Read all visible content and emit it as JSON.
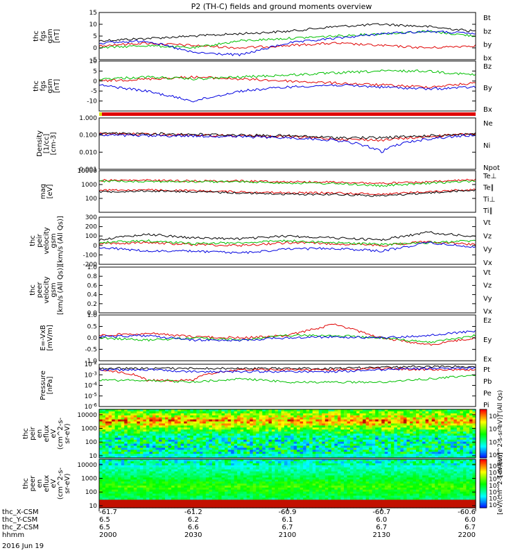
{
  "title": "P2 (TH-C) fields and ground moments overview",
  "date_label": "2016 Jun 19",
  "time_range": [
    "2000",
    "2200"
  ],
  "panels": [
    {
      "id": "fgs_gsm",
      "ylabel": [
        "thc",
        "fgs",
        "gsm",
        "[nT]"
      ],
      "ylim": [
        -5,
        15
      ],
      "yticks": [
        "15",
        "10",
        "5",
        "0",
        "-5"
      ],
      "yticks_values": [
        15,
        10,
        5,
        0,
        -5
      ],
      "legend": [
        {
          "label": "Bt",
          "color": "#000000"
        },
        {
          "label": "bz",
          "color": "#e00000"
        },
        {
          "label": "by",
          "color": "#00c000"
        },
        {
          "label": "bx",
          "color": "#0000e0"
        }
      ]
    },
    {
      "id": "fgs_gse",
      "ylabel": [
        "thc",
        "fgs",
        "gsm",
        "[nT]"
      ],
      "ylim": [
        -15,
        10
      ],
      "yticks": [
        "10",
        "5",
        "0",
        "-5",
        "-10"
      ],
      "yticks_values": [
        10,
        5,
        0,
        -5,
        -10
      ],
      "legend": [
        {
          "label": "Bz",
          "color": "#e00000"
        },
        {
          "label": "By",
          "color": "#00c000"
        },
        {
          "label": "Bx",
          "color": "#0000e0"
        }
      ]
    },
    {
      "id": "density",
      "ylabel": [
        "Density",
        "[1/cc]",
        "[cm-3]"
      ],
      "log": true,
      "ylim": [
        0.001,
        1.0
      ],
      "yticks": [
        "1.000",
        "0.100",
        "0.010",
        "0.001"
      ],
      "yticks_values": [
        1.0,
        0.1,
        0.01,
        0.001
      ],
      "legend": [
        {
          "label": "Ne",
          "color": "#e00000"
        },
        {
          "label": "Ni",
          "color": "#000000"
        },
        {
          "label": "Npot",
          "color": "#0000e0"
        }
      ]
    },
    {
      "id": "temperature",
      "ylabel": [
        "mag",
        "[eV]"
      ],
      "log": true,
      "ylim": [
        10,
        10000
      ],
      "yticks": [
        "10000",
        "1000",
        "100"
      ],
      "yticks_values": [
        10000,
        1000,
        100
      ],
      "legend": [
        {
          "label": "Te⊥",
          "color": "#e00000"
        },
        {
          "label": "Te∥",
          "color": "#000000"
        },
        {
          "label": "Ti⊥",
          "color": "#e00000"
        },
        {
          "label": "Ti∥",
          "color": "#00c000"
        }
      ]
    },
    {
      "id": "peir_velocity",
      "ylabel": [
        "thc",
        "peir",
        "velocity",
        "gsm",
        "[km/s (All Qs)]"
      ],
      "ylim": [
        -200,
        300
      ],
      "yticks": [
        "300",
        "200",
        "100",
        "0",
        "-100",
        "-200"
      ],
      "yticks_values": [
        300,
        200,
        100,
        0,
        -100,
        -200
      ],
      "legend": [
        {
          "label": "Vt",
          "color": "#000000"
        },
        {
          "label": "Vz",
          "color": "#e00000"
        },
        {
          "label": "Vy",
          "color": "#00c000"
        },
        {
          "label": "Vx",
          "color": "#0000e0"
        }
      ]
    },
    {
      "id": "peer_velocity",
      "ylabel": [
        "thc",
        "peer",
        "velocity",
        "gsm",
        "[km/s (All Qs)]"
      ],
      "ylim": [
        0.0,
        1.0
      ],
      "yticks": [
        "1.0",
        "0.8",
        "0.6",
        "0.4",
        "0.2",
        "0.0"
      ],
      "yticks_values": [
        1.0,
        0.8,
        0.6,
        0.4,
        0.2,
        0.0
      ],
      "legend": [
        {
          "label": "Vt",
          "color": "#000000"
        },
        {
          "label": "Vz",
          "color": "#e00000"
        },
        {
          "label": "Vy",
          "color": "#00c000"
        },
        {
          "label": "Vx",
          "color": "#0000e0"
        }
      ]
    },
    {
      "id": "efield",
      "ylabel": [
        "E=-VxB",
        "[mV/m]"
      ],
      "ylim": [
        -1.0,
        1.0
      ],
      "yticks": [
        "1.0",
        "0.5",
        "0.0",
        "-0.5",
        "-1.0"
      ],
      "yticks_values": [
        1.0,
        0.5,
        0.0,
        -0.5,
        -1.0
      ],
      "legend": [
        {
          "label": "Ez",
          "color": "#e00000"
        },
        {
          "label": "Ey",
          "color": "#00c000"
        },
        {
          "label": "Ex",
          "color": "#0000e0"
        }
      ]
    },
    {
      "id": "pressure",
      "ylabel": [
        "Pressure",
        "[nPa]"
      ],
      "log": true,
      "ylim": [
        1e-06,
        0.01
      ],
      "yticks": [
        "10-2",
        "10-3",
        "10-4",
        "10-5",
        "10-6"
      ],
      "yticks_values": [
        0.01,
        0.001,
        0.0001,
        1e-05,
        1e-06
      ],
      "legend": [
        {
          "label": "Pt",
          "color": "#000000"
        },
        {
          "label": "Pb",
          "color": "#e00000"
        },
        {
          "label": "Pe",
          "color": "#00c000"
        },
        {
          "label": "Pi",
          "color": "#0000e0"
        }
      ]
    },
    {
      "id": "peir_spectrogram",
      "ylabel": [
        "thc",
        "peir",
        "en",
        "eflux",
        "eV",
        "(cm^2-s-",
        "sr-eV)"
      ],
      "log": true,
      "ylim": [
        7,
        25000
      ],
      "yticks": [
        "10000",
        "1000",
        "100",
        "10"
      ],
      "yticks_values": [
        10000,
        1000,
        100,
        10
      ],
      "colorbar_ticks": [
        "10^5",
        "10^4",
        "10^3",
        "10^2"
      ],
      "colorbar_ticks_values": [
        100000,
        10000,
        1000,
        100
      ],
      "colorbar_label": "[eV/(cm^2-s-sr-eV)] (All Qs)"
    },
    {
      "id": "peer_spectrogram",
      "ylabel": [
        "thc",
        "peer",
        "en",
        "eflux",
        "eV",
        "(cm^2-s-",
        "sr-eV)"
      ],
      "log": true,
      "ylim": [
        7,
        25000
      ],
      "yticks": [
        "10000",
        "1000",
        "100",
        "10"
      ],
      "yticks_values": [
        10000,
        1000,
        100,
        10
      ],
      "colorbar_ticks": [
        "10^8",
        "10^7",
        "10^6",
        "10^5",
        "10^4",
        "10^3",
        "10^2"
      ],
      "colorbar_ticks_values": [
        100000000,
        10000000,
        1000000,
        100000,
        10000,
        1000,
        100
      ],
      "colorbar_label": "[eV/(cm^2-s-sr-eV)]"
    }
  ],
  "xaxis": {
    "row_labels": [
      "thc_X-CSM",
      "thc_Y-CSM",
      "thc_Z-CSM",
      "hhmm"
    ],
    "columns": [
      {
        "values": [
          "-61.7",
          "6.5",
          "6.5",
          "2000"
        ]
      },
      {
        "values": [
          "-61.2",
          "6.2",
          "6.6",
          "2030"
        ]
      },
      {
        "values": [
          "-60.9",
          "6.1",
          "6.7",
          "2100"
        ]
      },
      {
        "values": [
          "-60.7",
          "6.0",
          "6.7",
          "2130"
        ]
      },
      {
        "values": [
          "-60.6",
          "6.0",
          "6.7",
          "2200"
        ]
      }
    ]
  },
  "chart_data": {
    "type": "line",
    "title": "P2 (TH-C) fields and ground moments overview",
    "x": [
      "2000",
      "2015",
      "2030",
      "2045",
      "2100",
      "2115",
      "2130",
      "2145",
      "2200"
    ],
    "panels": [
      {
        "name": "fgs_gsm",
        "series": [
          {
            "name": "Bt",
            "values": [
              3,
              4,
              5,
              6,
              7,
              9,
              10,
              9,
              7
            ]
          },
          {
            "name": "bz",
            "values": [
              1,
              2,
              1,
              0,
              1,
              2,
              1,
              0,
              1
            ]
          },
          {
            "name": "by",
            "values": [
              0,
              1,
              0,
              3,
              4,
              5,
              6,
              7,
              5
            ]
          },
          {
            "name": "bx",
            "values": [
              2,
              3,
              -2,
              -3,
              2,
              4,
              6,
              7,
              6
            ]
          }
        ]
      },
      {
        "name": "fgs_gse",
        "series": [
          {
            "name": "Bz",
            "values": [
              0,
              1,
              2,
              1,
              0,
              -1,
              -2,
              -3,
              -1
            ]
          },
          {
            "name": "By",
            "values": [
              1,
              2,
              1,
              2,
              3,
              4,
              5,
              5,
              3
            ]
          },
          {
            "name": "Bx",
            "values": [
              -2,
              -5,
              -10,
              -5,
              -3,
              -2,
              -3,
              -4,
              -3
            ]
          }
        ]
      },
      {
        "name": "density",
        "series": [
          {
            "name": "Ne",
            "values": [
              0.12,
              0.11,
              0.1,
              0.09,
              0.08,
              0.06,
              0.05,
              0.08,
              0.12
            ]
          },
          {
            "name": "Ni",
            "values": [
              0.12,
              0.12,
              0.11,
              0.1,
              0.09,
              0.07,
              0.07,
              0.09,
              0.12
            ]
          },
          {
            "name": "Npot",
            "values": [
              0.1,
              0.09,
              0.09,
              0.08,
              0.07,
              0.05,
              0.01,
              0.06,
              0.1
            ]
          }
        ]
      },
      {
        "name": "temperature",
        "series": [
          {
            "name": "Te⊥",
            "values": [
              400,
              400,
              350,
              300,
              250,
              250,
              200,
              300,
              450
            ]
          },
          {
            "name": "Te∥",
            "values": [
              300,
              350,
              300,
              250,
              200,
              200,
              150,
              250,
              400
            ]
          },
          {
            "name": "Ti⊥",
            "values": [
              2000,
              2000,
              1800,
              1800,
              1600,
              1500,
              1200,
              1500,
              2200
            ]
          },
          {
            "name": "Ti∥",
            "values": [
              1800,
              1700,
              1600,
              1600,
              1300,
              1200,
              800,
              1200,
              1800
            ]
          }
        ]
      },
      {
        "name": "peir_velocity",
        "series": [
          {
            "name": "Vt",
            "values": [
              60,
              120,
              80,
              70,
              100,
              80,
              60,
              140,
              90
            ]
          },
          {
            "name": "Vz",
            "values": [
              20,
              30,
              10,
              0,
              30,
              20,
              0,
              40,
              10
            ]
          },
          {
            "name": "Vy",
            "values": [
              30,
              50,
              20,
              30,
              50,
              30,
              10,
              30,
              50
            ]
          },
          {
            "name": "Vx",
            "values": [
              -20,
              -60,
              -60,
              -80,
              -40,
              -30,
              -60,
              30,
              -20
            ]
          }
        ]
      },
      {
        "name": "efield",
        "series": [
          {
            "name": "Ez",
            "values": [
              0.1,
              0.2,
              0.05,
              0.0,
              0.1,
              0.6,
              0.0,
              -0.3,
              0.0
            ]
          },
          {
            "name": "Ey",
            "values": [
              0.0,
              -0.1,
              0.0,
              -0.1,
              0.1,
              0.1,
              0.0,
              -0.2,
              0.1
            ]
          },
          {
            "name": "Ex",
            "values": [
              0.05,
              0.1,
              -0.1,
              -0.1,
              0.0,
              0.05,
              0.0,
              0.1,
              0.3
            ]
          }
        ]
      },
      {
        "name": "pressure",
        "series": [
          {
            "name": "Pt",
            "values": [
              0.004,
              0.004,
              0.004,
              0.004,
              0.004,
              0.004,
              0.005,
              0.006,
              0.006
            ]
          },
          {
            "name": "Pb",
            "values": [
              0.003,
              0.0003,
              0.0003,
              0.003,
              0.003,
              0.003,
              0.004,
              0.003,
              0.003
            ]
          },
          {
            "name": "Pe",
            "values": [
              0.0003,
              0.0003,
              0.0002,
              0.0004,
              0.0002,
              0.0002,
              0.0002,
              0.0004,
              0.0008
            ]
          },
          {
            "name": "Pi",
            "values": [
              0.003,
              0.003,
              0.002,
              0.002,
              0.002,
              0.002,
              0.003,
              0.004,
              0.004
            ]
          }
        ]
      }
    ]
  }
}
